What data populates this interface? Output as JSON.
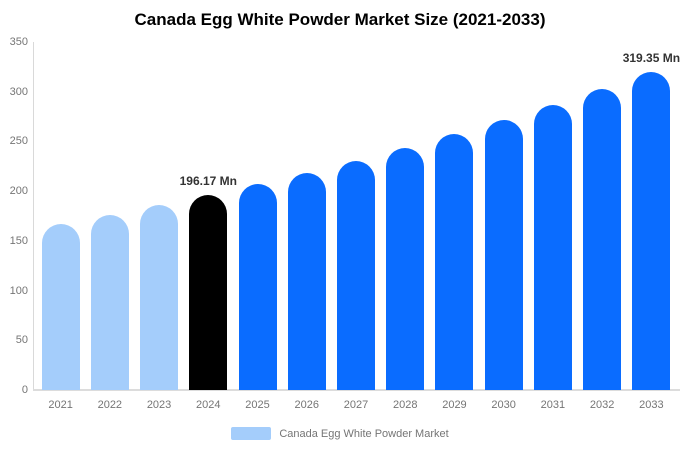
{
  "chart_data": {
    "type": "bar",
    "title": "Canada Egg White Powder Market Size (2021-2033)",
    "categories": [
      "2021",
      "2022",
      "2023",
      "2024",
      "2025",
      "2026",
      "2027",
      "2028",
      "2029",
      "2030",
      "2031",
      "2032",
      "2033"
    ],
    "values": [
      166.7,
      176.0,
      185.8,
      196.17,
      207.1,
      218.6,
      230.8,
      243.7,
      257.2,
      271.6,
      286.7,
      302.6,
      319.35
    ],
    "bar_colors": [
      "#a4cdfb",
      "#a4cdfb",
      "#a4cdfb",
      "#000000",
      "#0a6cff",
      "#0a6cff",
      "#0a6cff",
      "#0a6cff",
      "#0a6cff",
      "#0a6cff",
      "#0a6cff",
      "#0a6cff",
      "#0a6cff"
    ],
    "data_labels": {
      "2024": "196.17 Mn",
      "2033": "319.35 Mn"
    },
    "ylim": [
      0,
      350
    ],
    "yticks": [
      0,
      50,
      100,
      150,
      200,
      250,
      300,
      350
    ],
    "grid": false,
    "legend_label": "Canada Egg White Powder Market",
    "legend_swatch_color": "#a4cdfb",
    "legend_position": "bottom",
    "xlabel": "",
    "ylabel": ""
  },
  "colors": {
    "historical_bar": "#a4cdfb",
    "current_year_bar": "#000000",
    "forecast_bar": "#0a6cff",
    "axis_line": "#d9d9d9",
    "tick_text": "#757575",
    "title_text": "#000000",
    "data_label_text": "#333333"
  }
}
